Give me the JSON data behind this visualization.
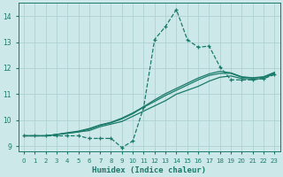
{
  "xlabel": "Humidex (Indice chaleur)",
  "bg_color": "#cce8e8",
  "line_color": "#1a7a6a",
  "grid_color": "#aacece",
  "axis_color": "#1a7a6a",
  "xlim": [
    -0.5,
    23.5
  ],
  "ylim": [
    8.8,
    14.5
  ],
  "yticks": [
    9,
    10,
    11,
    12,
    13,
    14
  ],
  "xticks": [
    0,
    1,
    2,
    3,
    4,
    5,
    6,
    7,
    8,
    9,
    10,
    11,
    12,
    13,
    14,
    15,
    16,
    17,
    18,
    19,
    20,
    21,
    22,
    23
  ],
  "series": [
    {
      "x": [
        0,
        1,
        2,
        3,
        4,
        5,
        6,
        7,
        8,
        9,
        10,
        11,
        12,
        13,
        14,
        15,
        16,
        17,
        18,
        19,
        20,
        21,
        22,
        23
      ],
      "y": [
        9.4,
        9.4,
        9.4,
        9.4,
        9.4,
        9.4,
        9.3,
        9.3,
        9.3,
        8.95,
        9.2,
        10.5,
        13.1,
        13.6,
        14.25,
        13.1,
        12.8,
        12.85,
        12.05,
        11.55,
        11.55,
        11.55,
        11.6,
        11.75
      ],
      "linestyle": "--",
      "marker": true
    },
    {
      "x": [
        0,
        1,
        2,
        3,
        4,
        5,
        6,
        7,
        8,
        9,
        10,
        11,
        12,
        13,
        14,
        15,
        16,
        17,
        18,
        19,
        20,
        21,
        22,
        23
      ],
      "y": [
        9.4,
        9.4,
        9.4,
        9.45,
        9.5,
        9.55,
        9.6,
        9.75,
        9.85,
        9.95,
        10.15,
        10.35,
        10.55,
        10.75,
        11.0,
        11.15,
        11.3,
        11.5,
        11.65,
        11.7,
        11.6,
        11.58,
        11.6,
        11.8
      ],
      "linestyle": "-",
      "marker": false
    },
    {
      "x": [
        0,
        1,
        2,
        3,
        4,
        5,
        6,
        7,
        8,
        9,
        10,
        11,
        12,
        13,
        14,
        15,
        16,
        17,
        18,
        19,
        20,
        21,
        22,
        23
      ],
      "y": [
        9.4,
        9.4,
        9.4,
        9.45,
        9.5,
        9.55,
        9.65,
        9.8,
        9.9,
        10.05,
        10.25,
        10.5,
        10.72,
        10.95,
        11.15,
        11.35,
        11.55,
        11.72,
        11.8,
        11.8,
        11.65,
        11.62,
        11.65,
        11.82
      ],
      "linestyle": "-",
      "marker": false
    },
    {
      "x": [
        0,
        1,
        2,
        3,
        4,
        5,
        6,
        7,
        8,
        9,
        10,
        11,
        12,
        13,
        14,
        15,
        16,
        17,
        18,
        19,
        20,
        21,
        22,
        23
      ],
      "y": [
        9.4,
        9.4,
        9.4,
        9.45,
        9.52,
        9.58,
        9.68,
        9.82,
        9.92,
        10.08,
        10.28,
        10.52,
        10.78,
        11.02,
        11.22,
        11.42,
        11.62,
        11.78,
        11.88,
        11.82,
        11.67,
        11.63,
        11.67,
        11.84
      ],
      "linestyle": "-",
      "marker": false
    }
  ]
}
